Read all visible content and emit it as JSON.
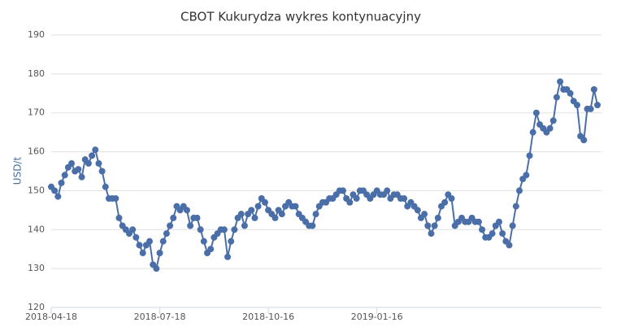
{
  "chart_data": {
    "type": "line",
    "title": "CBOT Kukurydza wykres kontynuacyjny",
    "y_label": "USD/t",
    "categories": [
      "2018-04-18",
      null,
      null,
      null,
      null,
      null,
      null,
      null,
      null,
      null,
      null,
      null,
      null,
      null,
      null,
      null,
      null,
      null,
      null,
      null,
      null,
      null,
      null,
      null,
      null,
      null,
      null,
      null,
      null,
      null,
      null,
      null,
      "2018-07-18",
      null,
      null,
      null,
      null,
      null,
      null,
      null,
      null,
      null,
      null,
      null,
      null,
      null,
      null,
      null,
      null,
      null,
      null,
      null,
      null,
      null,
      null,
      null,
      null,
      null,
      null,
      null,
      null,
      null,
      null,
      null,
      "2018-10-16",
      null,
      null,
      null,
      null,
      null,
      null,
      null,
      null,
      null,
      null,
      null,
      null,
      null,
      null,
      null,
      null,
      null,
      null,
      null,
      null,
      null,
      null,
      null,
      null,
      null,
      null,
      null,
      null,
      null,
      null,
      null,
      "2019-01-16",
      null,
      null,
      null,
      null,
      null,
      null,
      null,
      null,
      null,
      null,
      null,
      null,
      null,
      null,
      null,
      null,
      null,
      null,
      null,
      null,
      null,
      null,
      null,
      null,
      null,
      null,
      null,
      null,
      null,
      null,
      null,
      null,
      null,
      null,
      null,
      null,
      null,
      null,
      null,
      null,
      null,
      null,
      null,
      null,
      null,
      null,
      null,
      null,
      null,
      null,
      null,
      null,
      null,
      null,
      null,
      null,
      null,
      null,
      null,
      null,
      null,
      null,
      null,
      null,
      null
    ],
    "values": [
      151,
      150,
      148.5,
      152,
      154,
      156,
      157,
      155,
      155.5,
      153.5,
      158,
      157,
      159,
      160.5,
      157,
      155,
      151,
      148,
      148,
      148,
      143,
      141,
      140,
      139,
      140,
      138,
      136,
      134,
      136,
      137,
      131,
      130,
      134,
      137,
      139,
      141,
      143,
      146,
      145,
      146,
      145,
      141,
      143,
      143,
      140,
      137,
      134,
      135,
      138,
      139,
      140,
      140,
      133,
      137,
      140,
      143,
      144,
      141,
      144,
      145,
      143,
      146,
      148,
      147,
      145,
      144,
      143,
      145,
      144,
      146,
      147,
      146,
      146,
      144,
      143,
      142,
      141,
      141,
      144,
      146,
      147,
      147,
      148,
      148,
      149,
      150,
      150,
      148,
      147,
      149,
      148,
      150,
      150,
      149,
      148,
      149,
      150,
      149,
      149,
      150,
      148,
      149,
      149,
      148,
      148,
      146,
      147,
      146,
      145,
      143,
      144,
      141,
      139,
      141,
      143,
      146,
      147,
      149,
      148,
      141,
      142,
      143,
      142,
      142,
      143,
      142,
      142,
      140,
      138,
      138,
      139,
      141,
      142,
      139,
      137,
      136,
      141,
      146,
      150,
      153,
      154,
      159,
      165,
      170,
      167,
      166,
      165,
      166,
      168,
      174,
      178,
      176,
      176,
      175,
      173,
      172,
      164,
      163,
      171,
      171,
      176,
      172
    ],
    "color": "#4a6fa8",
    "ylim": [
      120,
      190
    ],
    "yticks": [
      120,
      130,
      140,
      150,
      160,
      170,
      180,
      190
    ],
    "grid": true
  }
}
